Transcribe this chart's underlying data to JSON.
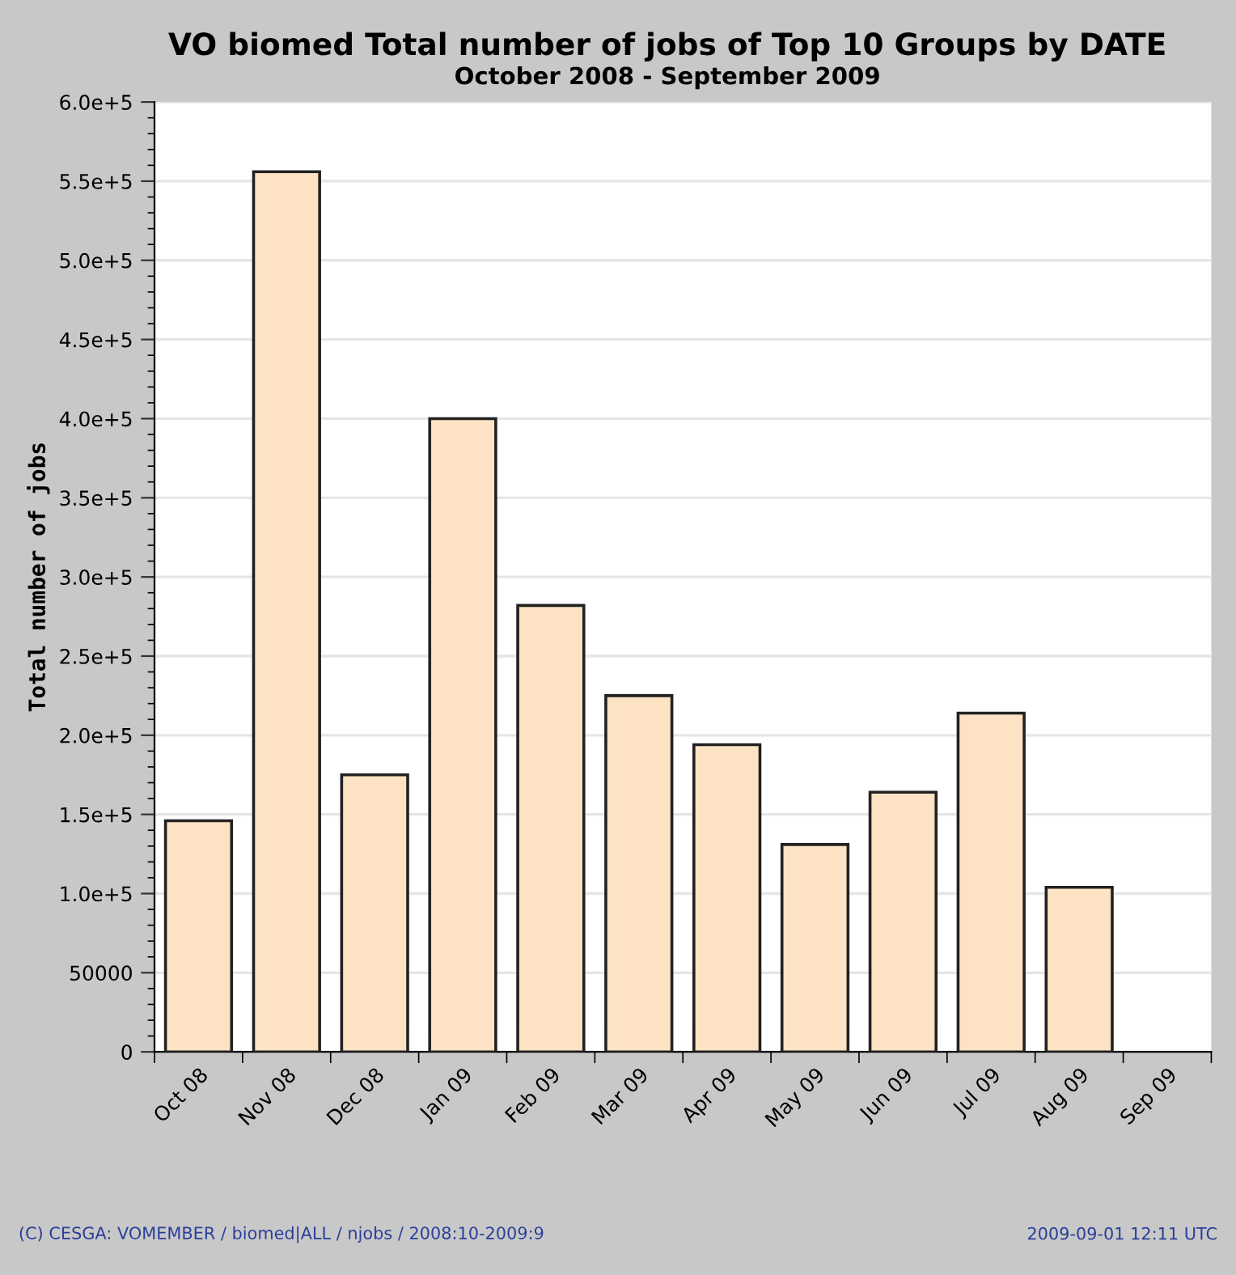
{
  "chart_data": {
    "type": "bar",
    "title": "VO biomed Total number of jobs of Top 10 Groups by DATE",
    "subtitle": "October 2008 - September 2009",
    "ylabel": "Total number of jobs",
    "categories": [
      "Oct 08",
      "Nov 08",
      "Dec 08",
      "Jan 09",
      "Feb 09",
      "Mar 09",
      "Apr 09",
      "May 09",
      "Jun 09",
      "Jul 09",
      "Aug 09",
      "Sep 09"
    ],
    "values": [
      146000,
      556000,
      175000,
      400000,
      282000,
      225000,
      194000,
      131000,
      164000,
      214000,
      104000,
      null
    ],
    "color": "#fde3c3",
    "ylim": [
      0,
      600000
    ],
    "yticks": [
      0,
      50000,
      {
        "value": 100000,
        "label": "1.0e+5"
      },
      {
        "value": 150000,
        "label": "1.5e+5"
      },
      {
        "value": 200000,
        "label": "2.0e+5"
      },
      {
        "value": 250000,
        "label": "2.5e+5"
      },
      {
        "value": 300000,
        "label": "3.0e+5"
      },
      {
        "value": 350000,
        "label": "3.5e+5"
      },
      {
        "value": 400000,
        "label": "4.0e+5"
      },
      {
        "value": 450000,
        "label": "4.5e+5"
      },
      {
        "value": 500000,
        "label": "5.0e+5"
      },
      {
        "value": 550000,
        "label": "5.5e+5"
      },
      {
        "value": 600000,
        "label": "6.0e+5"
      }
    ],
    "grid": "y",
    "annotations": [
      "(C) CESGA: VOMEMBER / biomed|ALL / njobs / 2008:10-2009:9",
      "2009-09-01 12:11 UTC"
    ]
  }
}
